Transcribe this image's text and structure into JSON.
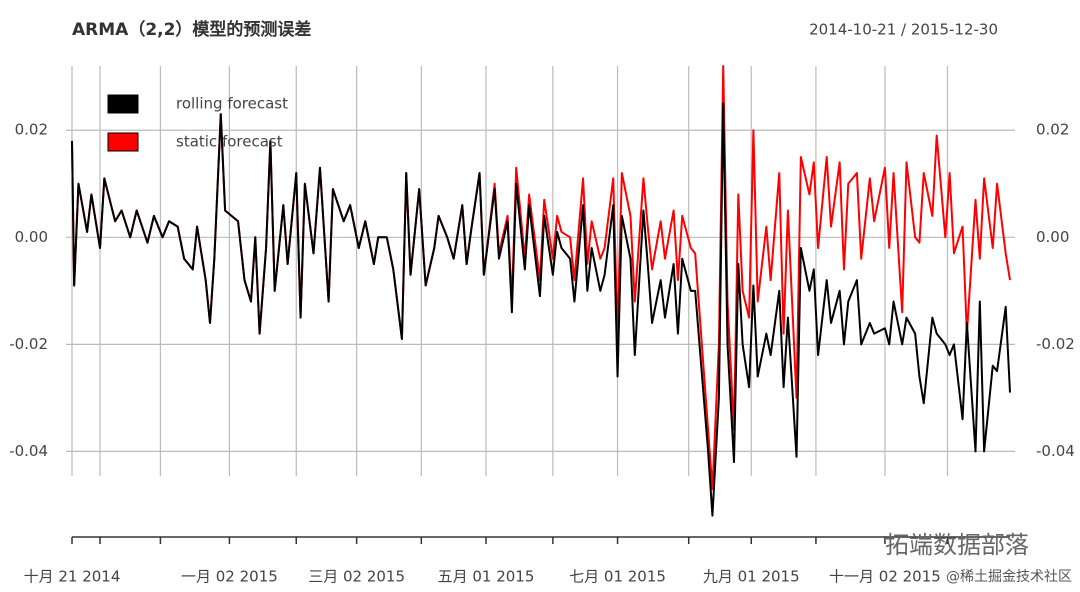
{
  "chart_data": {
    "type": "line",
    "title": "ARMA（2,2）模型的预测误差",
    "subtitle": "2014-10-21 / 2015-12-30",
    "watermarks": [
      "拓端数据部落",
      "@稀土掘金技术社区"
    ],
    "legend": "top-left",
    "grid": true,
    "xlim": [
      "2014-10-21",
      "2015-12-30"
    ],
    "ylim": [
      -0.053,
      0.032
    ],
    "yticks": [
      -0.04,
      -0.02,
      {
        "value": 0,
        "label": "0.00"
      },
      0.02
    ],
    "xticks": [
      {
        "value": "2014-10-21",
        "label": "十月 21 2014"
      },
      {
        "value": "2015-01-02",
        "label": "一月 02 2015"
      },
      {
        "value": "2015-03-02",
        "label": "三月 02 2015"
      },
      {
        "value": "2015-05-01",
        "label": "五月 01 2015"
      },
      {
        "value": "2015-07-01",
        "label": "七月 01 2015"
      },
      {
        "value": "2015-09-01",
        "label": "九月 01 2015"
      },
      {
        "value": "2015-11-02",
        "label": "十一月 02 2015"
      }
    ],
    "x_minor_ticks": [
      "2014-11-03",
      "2014-12-01",
      "2015-02-02",
      "2015-04-01",
      "2015-06-01",
      "2015-08-03",
      "2015-10-01",
      "2015-12-01"
    ],
    "x": [
      "2014-10-21",
      "2014-10-22",
      "2014-10-24",
      "2014-10-28",
      "2014-10-30",
      "2014-11-03",
      "2014-11-05",
      "2014-11-10",
      "2014-11-13",
      "2014-11-17",
      "2014-11-20",
      "2014-11-25",
      "2014-11-28",
      "2014-12-02",
      "2014-12-05",
      "2014-12-09",
      "2014-12-12",
      "2014-12-16",
      "2014-12-18",
      "2014-12-22",
      "2014-12-24",
      "2014-12-26",
      "2014-12-29",
      "2014-12-31",
      "2015-01-06",
      "2015-01-09",
      "2015-01-12",
      "2015-01-14",
      "2015-01-16",
      "2015-01-19",
      "2015-01-21",
      "2015-01-23",
      "2015-01-27",
      "2015-01-29",
      "2015-02-02",
      "2015-02-04",
      "2015-02-06",
      "2015-02-10",
      "2015-02-13",
      "2015-02-17",
      "2015-02-19",
      "2015-02-24",
      "2015-02-27",
      "2015-03-03",
      "2015-03-06",
      "2015-03-10",
      "2015-03-12",
      "2015-03-16",
      "2015-03-19",
      "2015-03-23",
      "2015-03-25",
      "2015-03-27",
      "2015-03-31",
      "2015-04-03",
      "2015-04-07",
      "2015-04-09",
      "2015-04-13",
      "2015-04-16",
      "2015-04-20",
      "2015-04-22",
      "2015-04-24",
      "2015-04-28",
      "2015-04-30",
      "2015-05-05",
      "2015-05-07",
      "2015-05-11",
      "2015-05-13",
      "2015-05-15",
      "2015-05-19",
      "2015-05-21",
      "2015-05-26",
      "2015-05-28",
      "2015-06-01",
      "2015-06-03",
      "2015-06-05",
      "2015-06-09",
      "2015-06-11",
      "2015-06-15",
      "2015-06-17",
      "2015-06-19",
      "2015-06-23",
      "2015-06-25",
      "2015-06-29",
      "2015-07-01",
      "2015-07-03",
      "2015-07-07",
      "2015-07-09",
      "2015-07-13",
      "2015-07-15",
      "2015-07-17",
      "2015-07-21",
      "2015-07-23",
      "2015-07-27",
      "2015-07-29",
      "2015-07-31",
      "2015-08-04",
      "2015-08-06",
      "2015-08-10",
      "2015-08-12",
      "2015-08-14",
      "2015-08-17",
      "2015-08-19",
      "2015-08-21",
      "2015-08-24",
      "2015-08-26",
      "2015-08-28",
      "2015-08-31",
      "2015-09-02",
      "2015-09-04",
      "2015-09-08",
      "2015-09-10",
      "2015-09-14",
      "2015-09-16",
      "2015-09-18",
      "2015-09-22",
      "2015-09-24",
      "2015-09-28",
      "2015-09-30",
      "2015-10-02",
      "2015-10-06",
      "2015-10-08",
      "2015-10-12",
      "2015-10-14",
      "2015-10-16",
      "2015-10-20",
      "2015-10-22",
      "2015-10-26",
      "2015-10-28",
      "2015-11-02",
      "2015-11-04",
      "2015-11-06",
      "2015-11-10",
      "2015-11-12",
      "2015-11-16",
      "2015-11-18",
      "2015-11-20",
      "2015-11-24",
      "2015-11-26",
      "2015-11-30",
      "2015-12-02",
      "2015-12-04",
      "2015-12-08",
      "2015-12-10",
      "2015-12-14",
      "2015-12-16",
      "2015-12-18",
      "2015-12-22",
      "2015-12-24",
      "2015-12-28",
      "2015-12-30"
    ],
    "series": [
      {
        "name": "static forecast",
        "color": "#ff0000",
        "values": [
          0.018,
          -0.009,
          0.01,
          0.001,
          0.008,
          -0.002,
          0.011,
          0.003,
          0.005,
          0.0,
          0.005,
          -0.001,
          0.004,
          0.0,
          0.003,
          0.002,
          -0.004,
          -0.006,
          0.002,
          -0.008,
          -0.016,
          -0.004,
          0.023,
          0.005,
          0.003,
          -0.008,
          -0.012,
          0.0,
          -0.018,
          -0.002,
          0.018,
          -0.01,
          0.006,
          -0.005,
          0.012,
          -0.015,
          0.01,
          -0.003,
          0.013,
          -0.012,
          0.009,
          0.003,
          0.006,
          -0.002,
          0.003,
          -0.005,
          0.0,
          0.0,
          -0.006,
          -0.019,
          0.012,
          -0.007,
          0.009,
          -0.009,
          -0.002,
          0.004,
          0.0,
          -0.004,
          0.006,
          -0.005,
          0.001,
          0.012,
          -0.007,
          0.01,
          -0.003,
          0.004,
          -0.012,
          0.013,
          -0.004,
          0.008,
          -0.008,
          0.007,
          -0.004,
          0.004,
          0.001,
          0.0,
          -0.008,
          0.011,
          -0.005,
          0.003,
          -0.004,
          -0.002,
          0.011,
          -0.018,
          0.012,
          0.004,
          -0.012,
          0.011,
          0.002,
          -0.006,
          0.003,
          -0.004,
          0.005,
          -0.008,
          0.004,
          -0.002,
          -0.003,
          -0.025,
          -0.036,
          -0.047,
          -0.02,
          0.032,
          -0.012,
          -0.036,
          0.008,
          -0.01,
          -0.015,
          0.02,
          -0.012,
          0.002,
          -0.008,
          0.012,
          -0.018,
          0.005,
          -0.03,
          0.015,
          0.008,
          0.014,
          -0.002,
          0.015,
          0.002,
          0.014,
          -0.006,
          0.01,
          0.012,
          -0.004,
          0.011,
          0.003,
          0.013,
          -0.002,
          0.012,
          -0.014,
          0.014,
          0.0,
          -0.001,
          0.012,
          0.004,
          0.019,
          0.0,
          0.012,
          -0.003,
          0.002,
          -0.018,
          0.007,
          -0.004,
          0.011,
          -0.002,
          0.01,
          -0.003,
          -0.008
        ]
      },
      {
        "name": "rolling forecast",
        "color": "#000000",
        "values": [
          0.018,
          -0.009,
          0.01,
          0.001,
          0.008,
          -0.002,
          0.011,
          0.003,
          0.005,
          0.0,
          0.005,
          -0.001,
          0.004,
          0.0,
          0.003,
          0.002,
          -0.004,
          -0.006,
          0.002,
          -0.008,
          -0.016,
          -0.004,
          0.023,
          0.005,
          0.003,
          -0.008,
          -0.012,
          0.0,
          -0.018,
          -0.002,
          0.018,
          -0.01,
          0.006,
          -0.005,
          0.012,
          -0.015,
          0.01,
          -0.003,
          0.013,
          -0.012,
          0.009,
          0.003,
          0.006,
          -0.002,
          0.003,
          -0.005,
          0.0,
          0.0,
          -0.006,
          -0.019,
          0.012,
          -0.007,
          0.009,
          -0.009,
          -0.002,
          0.004,
          0.0,
          -0.004,
          0.006,
          -0.005,
          0.001,
          0.012,
          -0.007,
          0.009,
          -0.004,
          0.003,
          -0.014,
          0.01,
          -0.006,
          0.006,
          -0.011,
          0.004,
          -0.007,
          0.001,
          -0.002,
          -0.004,
          -0.012,
          0.006,
          -0.01,
          -0.002,
          -0.01,
          -0.007,
          0.006,
          -0.026,
          0.004,
          -0.004,
          -0.022,
          0.005,
          -0.005,
          -0.016,
          -0.008,
          -0.015,
          -0.005,
          -0.018,
          -0.004,
          -0.01,
          -0.01,
          -0.03,
          -0.04,
          -0.052,
          -0.03,
          0.025,
          -0.02,
          -0.042,
          -0.005,
          -0.02,
          -0.028,
          -0.009,
          -0.026,
          -0.018,
          -0.022,
          -0.01,
          -0.028,
          -0.015,
          -0.041,
          -0.002,
          -0.01,
          -0.006,
          -0.022,
          -0.008,
          -0.016,
          -0.01,
          -0.02,
          -0.012,
          -0.008,
          -0.02,
          -0.016,
          -0.018,
          -0.017,
          -0.02,
          -0.012,
          -0.02,
          -0.015,
          -0.018,
          -0.026,
          -0.031,
          -0.015,
          -0.018,
          -0.02,
          -0.022,
          -0.02,
          -0.034,
          -0.016,
          -0.04,
          -0.012,
          -0.04,
          -0.024,
          -0.025,
          -0.013,
          -0.029
        ]
      }
    ]
  }
}
